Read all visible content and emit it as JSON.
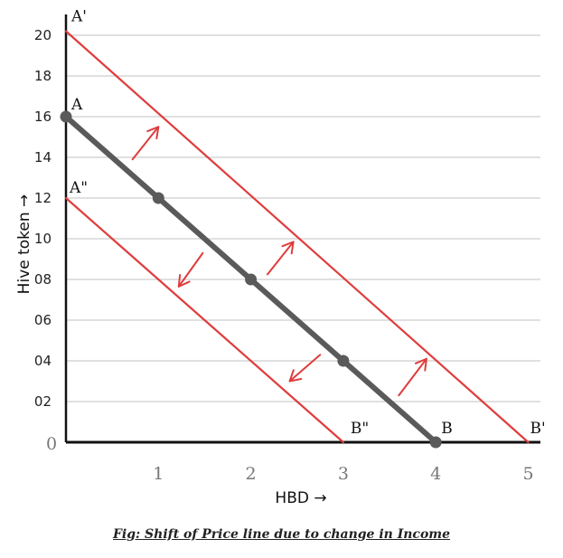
{
  "chart_data": {
    "type": "line",
    "title": "",
    "xlabel": "HBD →",
    "ylabel": "Hive token →",
    "xlim": [
      0,
      5.2
    ],
    "ylim": [
      0,
      21
    ],
    "x_ticks": [
      "1",
      "2",
      "3",
      "4",
      "5"
    ],
    "y_ticks": [
      {
        "value": 2,
        "label": "02"
      },
      {
        "value": 4,
        "label": "04"
      },
      {
        "value": 6,
        "label": "06"
      },
      {
        "value": 8,
        "label": "08"
      },
      {
        "value": 10,
        "label": "10"
      },
      {
        "value": 12,
        "label": "12"
      },
      {
        "value": 14,
        "label": "14"
      },
      {
        "value": 16,
        "label": "16"
      },
      {
        "value": 18,
        "label": "18"
      },
      {
        "value": 20,
        "label": "20"
      }
    ],
    "origin_label": "0",
    "grid": true,
    "series": [
      {
        "points": [
          [
            0,
            16
          ],
          [
            1,
            12
          ],
          [
            2,
            8
          ],
          [
            3,
            4
          ],
          [
            4,
            0
          ]
        ],
        "color": "#5a5a5a",
        "markers": true,
        "labels": [
          {
            "text": "A",
            "at": [
              0,
              16
            ]
          },
          {
            "text": "B",
            "at": [
              4,
              0
            ]
          }
        ]
      },
      {
        "points": [
          [
            0,
            20.2
          ],
          [
            5,
            0
          ]
        ],
        "color": "#e03c3c",
        "markers": false,
        "labels": [
          {
            "text": "A'",
            "at": [
              0,
              20.2
            ]
          },
          {
            "text": "B'",
            "at": [
              5,
              0
            ]
          }
        ]
      },
      {
        "points": [
          [
            0,
            12
          ],
          [
            3,
            0
          ]
        ],
        "color": "#e03c3c",
        "markers": false,
        "labels": [
          {
            "text": "A\"",
            "at": [
              0,
              12
            ]
          },
          {
            "text": "B\"",
            "at": [
              3,
              0
            ]
          }
        ]
      }
    ],
    "arrows": [
      {
        "from": [
          0.72,
          13.9
        ],
        "to": [
          1.0,
          15.5
        ],
        "direction": "out"
      },
      {
        "from": [
          2.18,
          8.25
        ],
        "to": [
          2.46,
          9.85
        ],
        "direction": "out"
      },
      {
        "from": [
          3.6,
          2.3
        ],
        "to": [
          3.9,
          4.1
        ],
        "direction": "out"
      },
      {
        "from": [
          1.48,
          9.3
        ],
        "to": [
          1.22,
          7.65
        ],
        "direction": "in"
      },
      {
        "from": [
          2.75,
          4.3
        ],
        "to": [
          2.42,
          3.0
        ],
        "direction": "in"
      }
    ]
  },
  "caption": "Fig: Shift of Price line due to change in Income"
}
